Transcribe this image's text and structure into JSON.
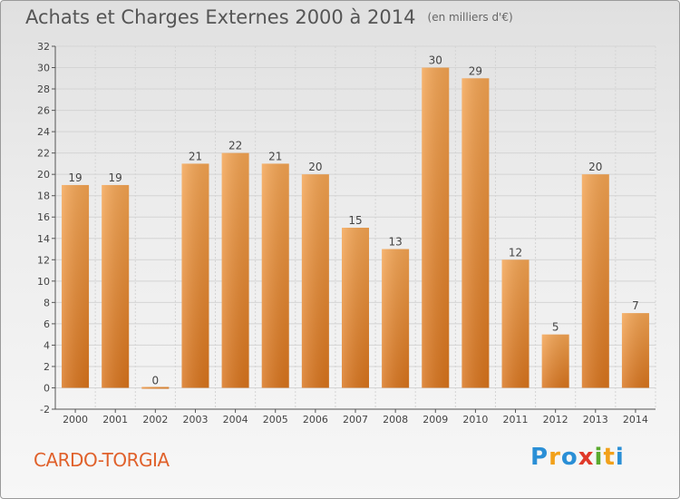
{
  "header": {
    "title": "Achats et Charges Externes 2000 à 2014",
    "unit": "(en milliers d'€)"
  },
  "footer": {
    "commune": "CARDO-TORGIA",
    "logo_letters": [
      {
        "char": "P",
        "color": "#2a8fd6"
      },
      {
        "char": "r",
        "color": "#f2a11a"
      },
      {
        "char": "o",
        "color": "#2a8fd6"
      },
      {
        "char": "x",
        "color": "#e03a2a"
      },
      {
        "char": "i",
        "color": "#5aaa2e"
      },
      {
        "char": "t",
        "color": "#f2a11a"
      },
      {
        "char": "i",
        "color": "#2a8fd6"
      }
    ]
  },
  "colors": {
    "bar_light": "#f4a452",
    "bar_dark": "#d9741c",
    "axis": "#555555",
    "grid": "#d4d4d4"
  },
  "chart_data": {
    "type": "bar",
    "title": "Achats et Charges Externes 2000 à 2014",
    "categories": [
      "2000",
      "2001",
      "2002",
      "2003",
      "2004",
      "2005",
      "2006",
      "2007",
      "2008",
      "2009",
      "2010",
      "2011",
      "2012",
      "2013",
      "2014"
    ],
    "values": [
      19,
      19,
      0,
      21,
      22,
      21,
      20,
      15,
      13,
      30,
      29,
      12,
      5,
      20,
      7
    ],
    "ylim": [
      -2,
      32
    ],
    "yticks": [
      -2,
      0,
      2,
      4,
      6,
      8,
      10,
      12,
      14,
      16,
      18,
      20,
      22,
      24,
      26,
      28,
      30,
      32
    ],
    "grid": true,
    "data_labels": true,
    "xlabel": "",
    "ylabel": ""
  }
}
